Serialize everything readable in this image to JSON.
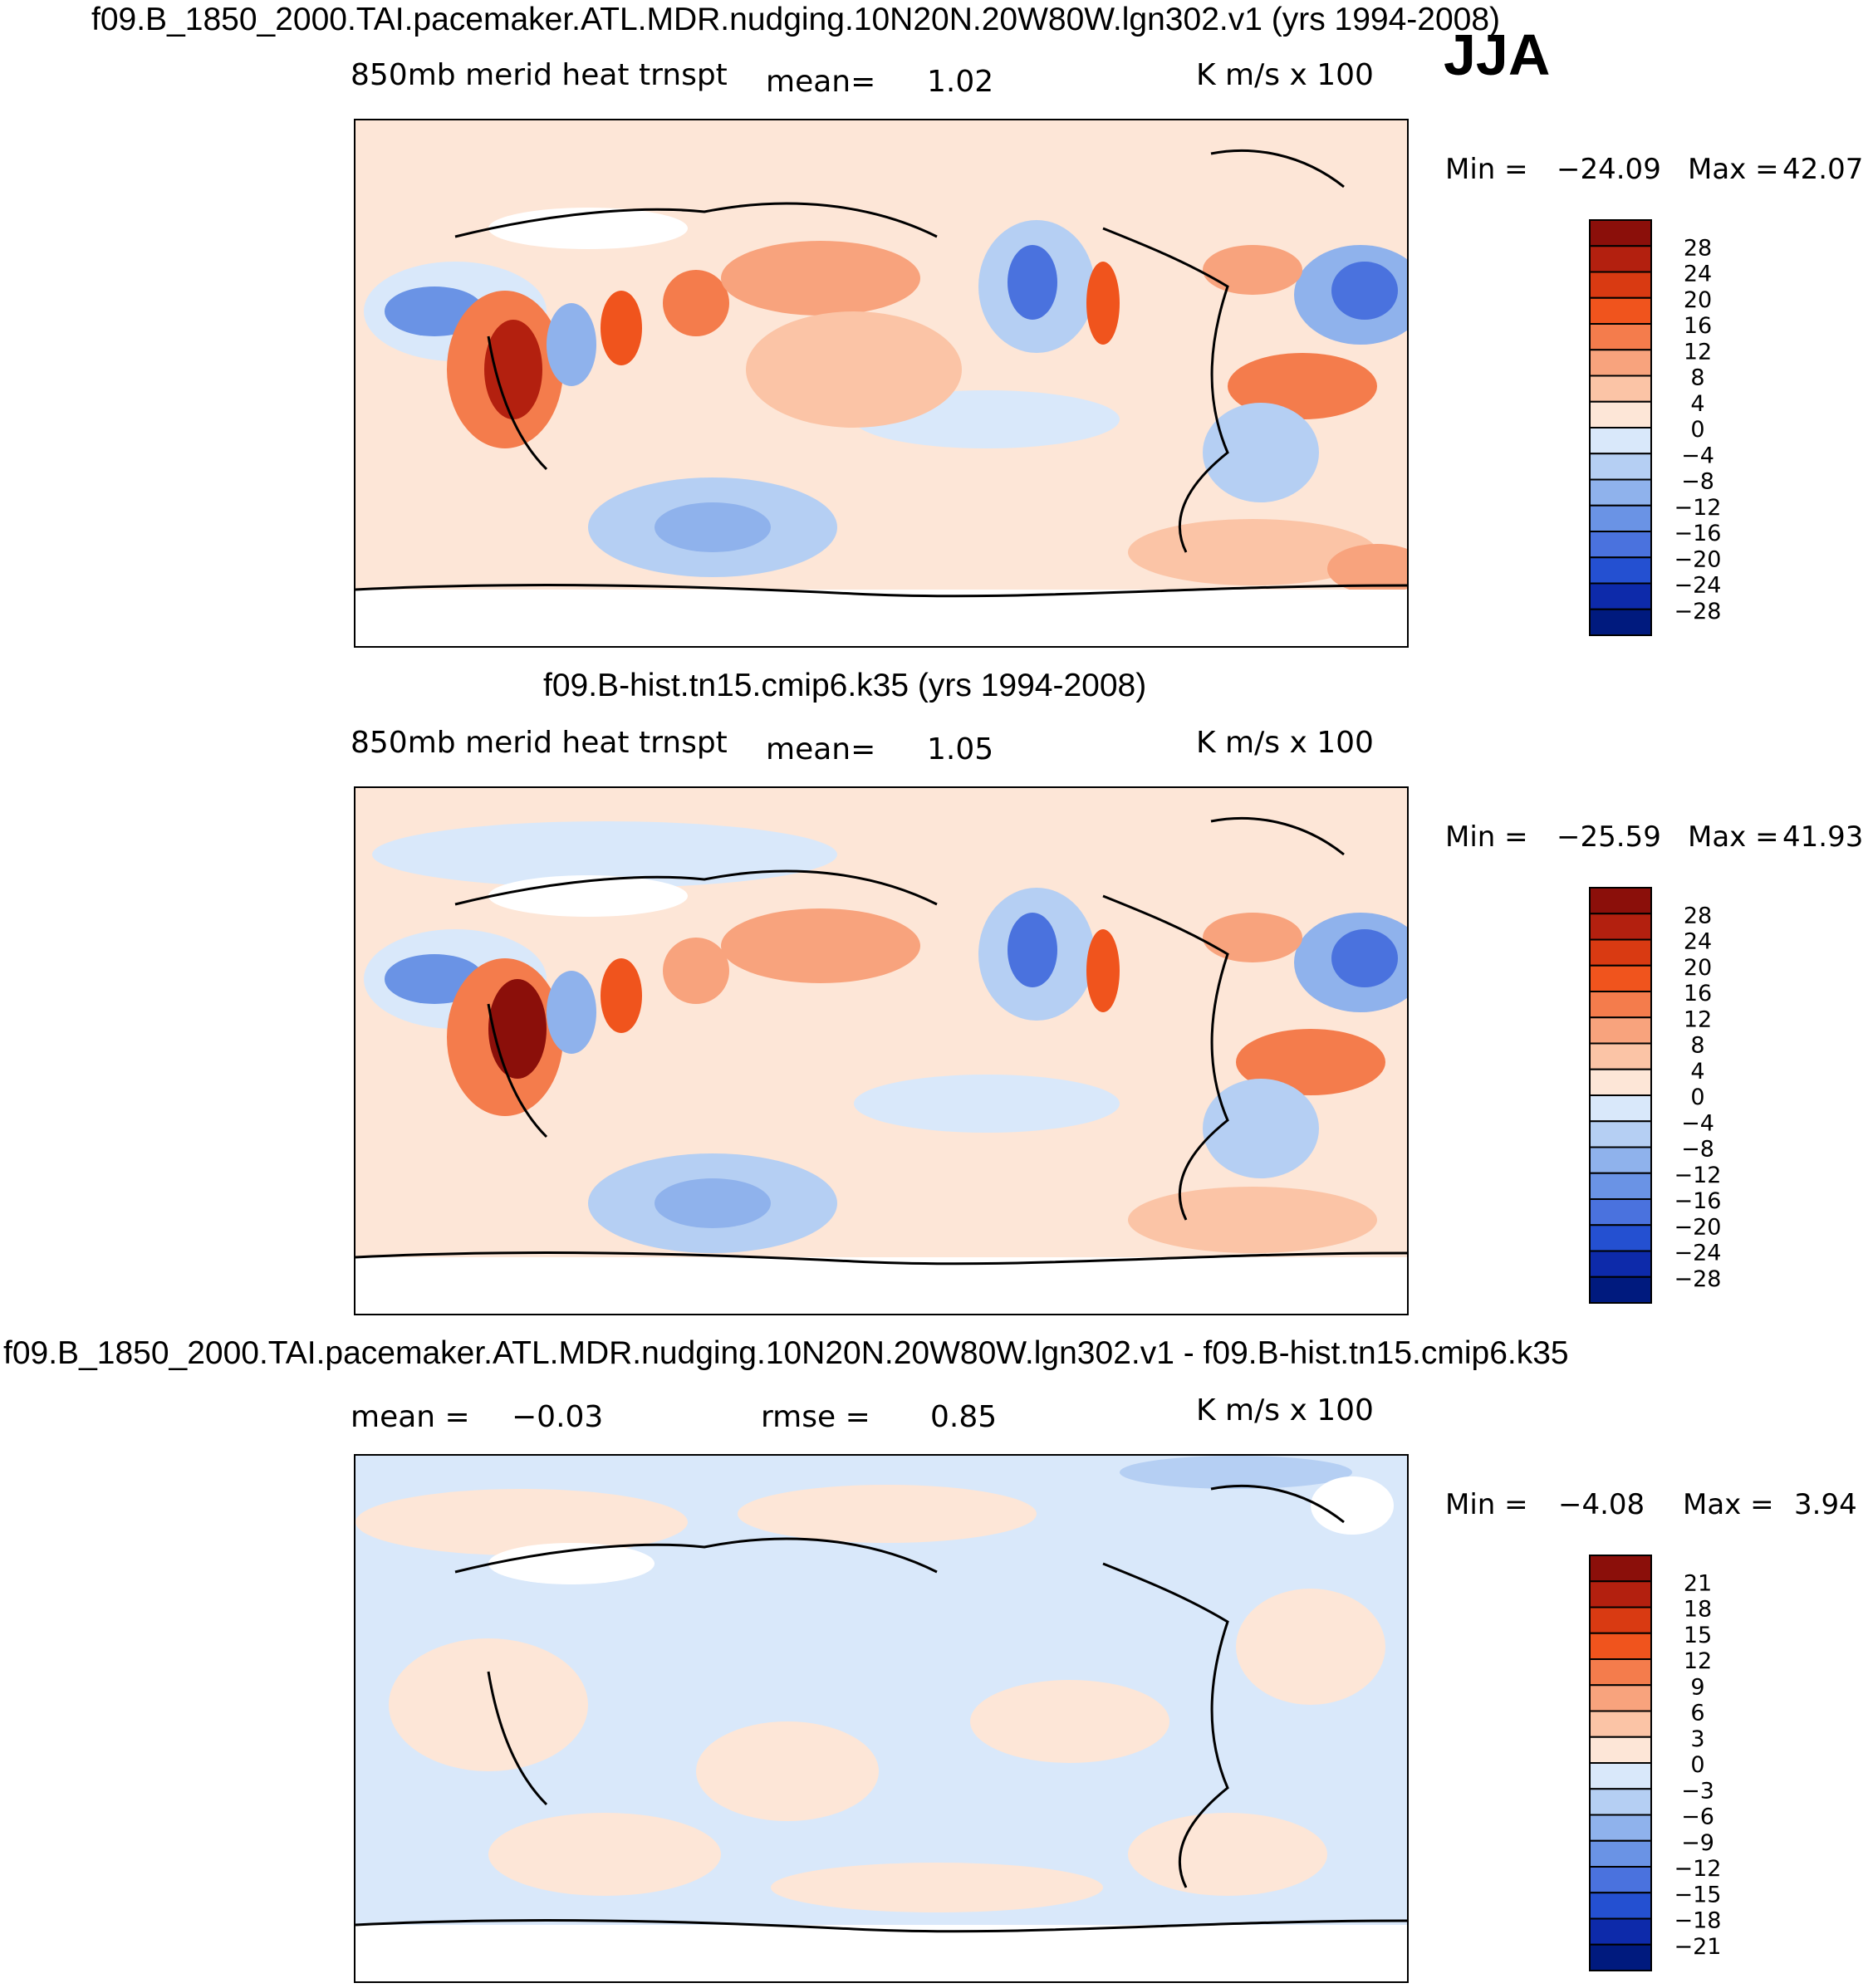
{
  "season_label": "JJA",
  "chart_data": [
    {
      "type": "heatmap",
      "title": "f09.B_1850_2000.TAI.pacemaker.ATL.MDR.nudging.10N20N.20W80W.lgn302.v1 (yrs 1994-2008)",
      "variable": "850mb  merid  heat  trnspt",
      "mean_label": "mean=",
      "mean_value": "1.02",
      "units": "K  m/s  x  100",
      "min_label": "Min  =",
      "min_value": "−24.09",
      "max_label": "Max  =",
      "max_value": "42.07",
      "colorbar_levels": [
        "28",
        "24",
        "20",
        "16",
        "12",
        "8",
        "4",
        "0",
        "−4",
        "−8",
        "−12",
        "−16",
        "−20",
        "−24",
        "−28"
      ],
      "colorbar_colors": [
        "#8b0f0a",
        "#b3200f",
        "#d93a12",
        "#f0541d",
        "#f47c4c",
        "#f8a37d",
        "#fbc4a6",
        "#fde6d7",
        "#d9e8fa",
        "#b5cff3",
        "#8fb2ec",
        "#6a93e5",
        "#4a72de",
        "#2450d1",
        "#0d2aaa",
        "#001a7e"
      ]
    },
    {
      "type": "heatmap",
      "title": "f09.B-hist.tn15.cmip6.k35 (yrs 1994-2008)",
      "variable": "850mb  merid  heat  trnspt",
      "mean_label": "mean=",
      "mean_value": "1.05",
      "units": "K  m/s  x  100",
      "min_label": "Min  =",
      "min_value": "−25.59",
      "max_label": "Max  =",
      "max_value": "41.93",
      "colorbar_levels": [
        "28",
        "24",
        "20",
        "16",
        "12",
        "8",
        "4",
        "0",
        "−4",
        "−8",
        "−12",
        "−16",
        "−20",
        "−24",
        "−28"
      ],
      "colorbar_colors": [
        "#8b0f0a",
        "#b3200f",
        "#d93a12",
        "#f0541d",
        "#f47c4c",
        "#f8a37d",
        "#fbc4a6",
        "#fde6d7",
        "#d9e8fa",
        "#b5cff3",
        "#8fb2ec",
        "#6a93e5",
        "#4a72de",
        "#2450d1",
        "#0d2aaa",
        "#001a7e"
      ]
    },
    {
      "type": "heatmap",
      "title": "f09.B_1850_2000.TAI.pacemaker.ATL.MDR.nudging.10N20N.20W80W.lgn302.v1 - f09.B-hist.tn15.cmip6.k35",
      "mean_label": "mean  =",
      "mean_value": "−0.03",
      "rmse_label": "rmse  =",
      "rmse_value": "0.85",
      "units": "K  m/s  x  100",
      "min_label": "Min  =",
      "min_value": "−4.08",
      "max_label": "Max  =",
      "max_value": "3.94",
      "colorbar_levels": [
        "21",
        "18",
        "15",
        "12",
        "9",
        "6",
        "3",
        "0",
        "−3",
        "−6",
        "−9",
        "−12",
        "−15",
        "−18",
        "−21"
      ],
      "colorbar_colors": [
        "#8b0f0a",
        "#b3200f",
        "#d93a12",
        "#f0541d",
        "#f47c4c",
        "#f8a37d",
        "#fbc4a6",
        "#fde6d7",
        "#d9e8fa",
        "#b5cff3",
        "#8fb2ec",
        "#6a93e5",
        "#4a72de",
        "#2450d1",
        "#0d2aaa",
        "#001a7e"
      ]
    }
  ]
}
